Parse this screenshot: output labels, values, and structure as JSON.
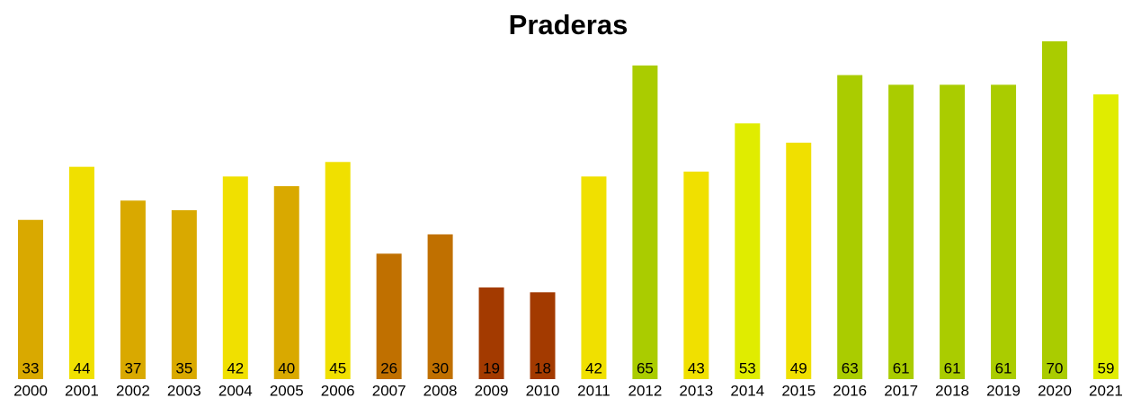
{
  "chart_data": {
    "type": "bar",
    "title": "Praderas",
    "categories": [
      "2000",
      "2001",
      "2002",
      "2003",
      "2004",
      "2005",
      "2006",
      "2007",
      "2008",
      "2009",
      "2010",
      "2011",
      "2012",
      "2013",
      "2014",
      "2015",
      "2016",
      "2017",
      "2018",
      "2019",
      "2020",
      "2021"
    ],
    "values": [
      33,
      44,
      37,
      35,
      42,
      40,
      45,
      26,
      30,
      19,
      18,
      42,
      65,
      43,
      53,
      49,
      63,
      61,
      61,
      61,
      70,
      59
    ],
    "colors": [
      "#d9a900",
      "#f0e000",
      "#d9a900",
      "#d9a900",
      "#f0e000",
      "#d9a900",
      "#f0e000",
      "#c07000",
      "#c07000",
      "#a33a00",
      "#a33a00",
      "#f0e000",
      "#aacc00",
      "#f0e000",
      "#e0ec00",
      "#f0e000",
      "#aacc00",
      "#aacc00",
      "#aacc00",
      "#aacc00",
      "#aacc00",
      "#e0ec00"
    ]
  }
}
